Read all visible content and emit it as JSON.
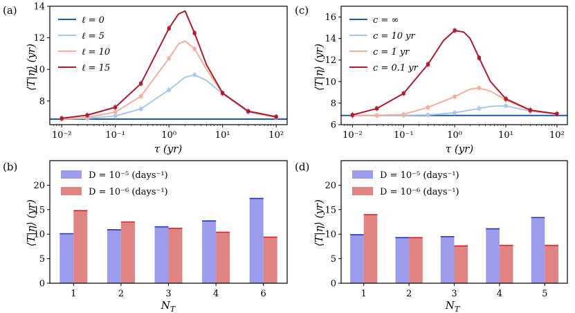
{
  "chart_data": [
    {
      "panel": "(a)",
      "type": "line",
      "xscale": "log",
      "xlim": [
        0.006,
        160
      ],
      "ylim": [
        6.5,
        14
      ],
      "xlabel": "τ (yr)",
      "ylabel": "⟨T|η⟩ (yr)",
      "xticks": [
        {
          "v": 0.01,
          "label": "10⁻²"
        },
        {
          "v": 0.1,
          "label": "10⁻¹"
        },
        {
          "v": 1,
          "label": "10⁰"
        },
        {
          "v": 10,
          "label": "10¹"
        },
        {
          "v": 100,
          "label": "10²"
        }
      ],
      "yticks": [
        8,
        10,
        12,
        14
      ],
      "legend_position": "top-left",
      "series": [
        {
          "name": "ℓ = 0",
          "color": "#1f5aa6",
          "style": "flat",
          "x": [
            0.006,
            160
          ],
          "y": [
            6.85,
            6.85
          ]
        },
        {
          "name": "ℓ = 5",
          "color": "#a6c8f0",
          "x": [
            0.01,
            0.03,
            0.1,
            0.3,
            1,
            2,
            3,
            5,
            10,
            30,
            100
          ],
          "y": [
            6.85,
            6.9,
            7.05,
            7.5,
            8.7,
            9.5,
            9.65,
            9.3,
            8.45,
            7.3,
            6.95
          ],
          "markers": [
            0.01,
            0.03,
            0.1,
            0.3,
            1,
            3,
            10,
            30,
            100
          ]
        },
        {
          "name": "ℓ = 10",
          "color": "#f4b09a",
          "x": [
            0.01,
            0.03,
            0.1,
            0.3,
            1,
            1.5,
            2,
            3,
            5,
            10,
            30,
            100
          ],
          "y": [
            6.85,
            6.95,
            7.3,
            8.3,
            10.7,
            11.6,
            11.8,
            11.3,
            10.0,
            8.5,
            7.35,
            6.95
          ],
          "markers": [
            0.01,
            0.03,
            0.1,
            0.3,
            1,
            3,
            10,
            30,
            100
          ]
        },
        {
          "name": "ℓ = 15",
          "color": "#b2182b",
          "x": [
            0.01,
            0.03,
            0.1,
            0.3,
            1,
            1.5,
            2,
            3,
            5,
            10,
            30,
            100
          ],
          "y": [
            6.9,
            7.1,
            7.6,
            9.1,
            12.6,
            13.5,
            13.7,
            12.3,
            10.3,
            8.5,
            7.35,
            7.0
          ],
          "markers": [
            0.01,
            0.03,
            0.1,
            0.3,
            1,
            3,
            10,
            30,
            100
          ]
        }
      ]
    },
    {
      "panel": "(c)",
      "type": "line",
      "xscale": "log",
      "xlim": [
        0.006,
        160
      ],
      "ylim": [
        6,
        17
      ],
      "xlabel": "τ (yr)",
      "ylabel": "⟨T|η⟩ (yr)",
      "xticks": [
        {
          "v": 0.01,
          "label": "10⁻²"
        },
        {
          "v": 0.1,
          "label": "10⁻¹"
        },
        {
          "v": 1,
          "label": "10⁰"
        },
        {
          "v": 10,
          "label": "10¹"
        },
        {
          "v": 100,
          "label": "10²"
        }
      ],
      "yticks": [
        6,
        8,
        10,
        12,
        14,
        16
      ],
      "legend_position": "top-left",
      "series": [
        {
          "name": "c = ∞",
          "color": "#1f5aa6",
          "style": "flat",
          "x": [
            0.006,
            160
          ],
          "y": [
            6.85,
            6.85
          ]
        },
        {
          "name": "c = 10 yr",
          "color": "#a6c8f0",
          "x": [
            0.01,
            0.03,
            0.1,
            0.3,
            1,
            3,
            5,
            10,
            30,
            100
          ],
          "y": [
            6.85,
            6.85,
            6.87,
            6.9,
            7.1,
            7.5,
            7.7,
            7.75,
            7.25,
            7.0
          ],
          "markers": [
            0.01,
            0.03,
            0.1,
            0.3,
            1,
            3,
            10,
            30,
            100
          ]
        },
        {
          "name": "c = 1 yr",
          "color": "#f4b09a",
          "x": [
            0.01,
            0.03,
            0.1,
            0.3,
            1,
            2,
            3,
            5,
            10,
            30,
            100
          ],
          "y": [
            6.85,
            6.85,
            6.95,
            7.6,
            8.6,
            9.3,
            9.4,
            9.1,
            8.3,
            7.3,
            7.0
          ],
          "markers": [
            0.01,
            0.03,
            0.1,
            0.3,
            1,
            3,
            10,
            30,
            100
          ]
        },
        {
          "name": "c = 0.1 yr",
          "color": "#b2182b",
          "x": [
            0.01,
            0.03,
            0.1,
            0.3,
            0.6,
            1,
            1.5,
            2,
            3,
            5,
            10,
            30,
            100
          ],
          "y": [
            6.9,
            7.5,
            8.9,
            11.6,
            13.8,
            14.75,
            14.6,
            14.0,
            12.2,
            10.0,
            8.4,
            7.35,
            7.0
          ],
          "markers": [
            0.01,
            0.03,
            0.1,
            0.3,
            1,
            3,
            10,
            30,
            100
          ]
        }
      ]
    },
    {
      "panel": "(b)",
      "type": "bar",
      "categories": [
        "1",
        "2",
        "3",
        "4",
        "6"
      ],
      "xlabel": "N_T",
      "ylabel": "⟨T|η⟩ (yr)",
      "ylim": [
        0,
        25
      ],
      "yticks": [
        0,
        5,
        10,
        15,
        20
      ],
      "legend_position": "top-left",
      "series": [
        {
          "name": "D = 10⁻⁵ (days⁻¹)",
          "color": "#9c9cef",
          "cap_color": "#2233cc",
          "values": [
            10.1,
            10.9,
            11.5,
            12.7,
            17.3
          ]
        },
        {
          "name": "D = 10⁻⁶ (days⁻¹)",
          "color": "#e08383",
          "cap_color": "#e02020",
          "values": [
            14.8,
            12.5,
            11.2,
            10.4,
            9.4
          ]
        }
      ]
    },
    {
      "panel": "(d)",
      "type": "bar",
      "categories": [
        "1",
        "2",
        "3",
        "4",
        "5"
      ],
      "xlabel": "N_T",
      "ylabel": "⟨T|η⟩ (yr)",
      "ylim": [
        0,
        25
      ],
      "yticks": [
        0,
        5,
        10,
        15,
        20
      ],
      "legend_position": "top-left",
      "series": [
        {
          "name": "D = 10⁻⁵ (days⁻¹)",
          "color": "#9c9cef",
          "cap_color": "#2233cc",
          "values": [
            9.9,
            9.3,
            9.5,
            11.1,
            13.4
          ]
        },
        {
          "name": "D = 10⁻⁶ (days⁻¹)",
          "color": "#e08383",
          "cap_color": "#e02020",
          "values": [
            14.0,
            9.3,
            7.6,
            7.7,
            7.7
          ]
        }
      ]
    }
  ]
}
